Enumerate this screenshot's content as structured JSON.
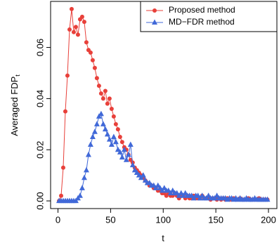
{
  "chart_data": {
    "type": "line",
    "x_label": "t",
    "y_label": "Averaged FDP",
    "y_label_subscript": "t",
    "legend_position": "topright",
    "xlim": [
      -7,
      208
    ],
    "ylim": [
      -0.003,
      0.078
    ],
    "xticks": [
      0,
      50,
      100,
      150,
      200
    ],
    "yticks": [
      {
        "value": 0,
        "label": "0.00"
      },
      0.02,
      0.04,
      0.06
    ],
    "x": [
      1,
      3,
      5,
      7,
      9,
      11,
      13,
      15,
      17,
      19,
      21,
      23,
      25,
      27,
      29,
      31,
      33,
      35,
      37,
      39,
      41,
      43,
      45,
      47,
      49,
      51,
      53,
      55,
      57,
      59,
      61,
      63,
      65,
      67,
      69,
      71,
      73,
      75,
      77,
      79,
      81,
      83,
      85,
      87,
      89,
      91,
      93,
      95,
      97,
      99,
      101,
      103,
      105,
      107,
      109,
      111,
      113,
      115,
      117,
      119,
      121,
      123,
      125,
      127,
      129,
      131,
      133,
      135,
      137,
      139,
      141,
      143,
      145,
      147,
      149,
      151,
      153,
      155,
      157,
      159,
      161,
      163,
      165,
      167,
      169,
      171,
      173,
      175,
      177,
      179,
      181,
      183,
      185,
      187,
      189,
      191,
      193,
      195,
      197,
      199
    ],
    "series": [
      {
        "name": "Proposed method",
        "color": "#e8403a",
        "marker": "circle",
        "values": [
          0,
          0.002,
          0.013,
          0.035,
          0.049,
          0.067,
          0.075,
          0.066,
          0.068,
          0.065,
          0.071,
          0.072,
          0.07,
          0.062,
          0.059,
          0.058,
          0.055,
          0.052,
          0.048,
          0.045,
          0.042,
          0.04,
          0.043,
          0.038,
          0.04,
          0.036,
          0.033,
          0.03,
          0.028,
          0.025,
          0.023,
          0.021,
          0.02,
          0.018,
          0.016,
          0.015,
          0.013,
          0.012,
          0.011,
          0.01,
          0.009,
          0.008,
          0.007,
          0.006,
          0.006,
          0.005,
          0.005,
          0.004,
          0.004,
          0.003,
          0.003,
          0.002,
          0.003,
          0.002,
          0.002,
          0.003,
          0.002,
          0.001,
          0.002,
          0.002,
          0.001,
          0.002,
          0.001,
          0.001,
          0.002,
          0.001,
          0.001,
          0.001,
          0.002,
          0.001,
          0.001,
          0.001,
          0.0005,
          0.001,
          0.001,
          0.0005,
          0.001,
          0.0005,
          0.001,
          0.0005,
          0.001,
          0.0005,
          0.0005,
          0.001,
          0.0005,
          0.0005,
          0.001,
          0.0005,
          0.0005,
          0.0005,
          0.001,
          0.0005,
          0.0005,
          0.0005,
          0.0005,
          0.001,
          0.0005,
          0.0005,
          0.0005,
          0.0005
        ]
      },
      {
        "name": "MD−FDR method",
        "color": "#4169d8",
        "marker": "triangle",
        "values": [
          0,
          0,
          0,
          0,
          0,
          0,
          0,
          0,
          0,
          0.001,
          0.002,
          0.005,
          0.009,
          0.012,
          0.018,
          0.022,
          0.025,
          0.027,
          0.03,
          0.033,
          0.034,
          0.03,
          0.028,
          0.026,
          0.024,
          0.022,
          0.025,
          0.023,
          0.02,
          0.019,
          0.017,
          0.02,
          0.016,
          0.018,
          0.022,
          0.014,
          0.012,
          0.011,
          0.01,
          0.009,
          0.01,
          0.008,
          0.007,
          0.007,
          0.006,
          0.006,
          0.005,
          0.006,
          0.005,
          0.004,
          0.005,
          0.004,
          0.004,
          0.003,
          0.004,
          0.003,
          0.003,
          0.002,
          0.003,
          0.002,
          0.003,
          0.002,
          0.002,
          0.002,
          0.001,
          0.002,
          0.002,
          0.001,
          0.002,
          0.001,
          0.001,
          0.002,
          0.001,
          0.001,
          0.001,
          0.002,
          0.001,
          0.001,
          0.001,
          0.001,
          0.0005,
          0.001,
          0.001,
          0.0005,
          0.001,
          0.0005,
          0.001,
          0.0005,
          0.0005,
          0.001,
          0.0005,
          0.0005,
          0.0005,
          0.001,
          0.0005,
          0.0005,
          0.0005,
          0.0005,
          0.0005,
          0.0005
        ]
      }
    ]
  }
}
